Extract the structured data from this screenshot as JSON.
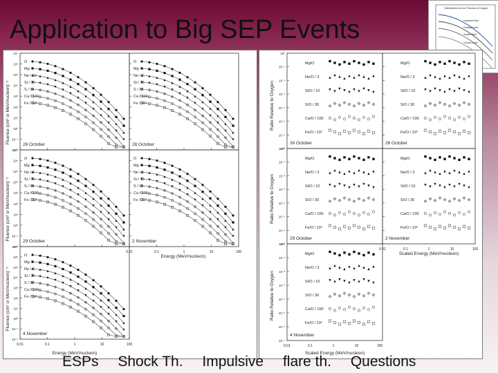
{
  "slide": {
    "title": "Application to Big SEP Events"
  },
  "thumbnail": {
    "title": "Distributions for the Theories of Oxygen",
    "labels": [
      "Impulsive flare",
      "Gradual event",
      "Scaled Wind",
      "Ground Level"
    ]
  },
  "left_figure": {
    "ylabel": "Fluence (cm² sr MeV/nucleon)⁻¹",
    "xlabel": "Energy (MeV/nucleon)",
    "x_ticks": [
      "0.01",
      "0.1",
      "1",
      "10",
      "100"
    ],
    "y_ticks": [
      "10⁷",
      "10⁶",
      "10⁵",
      "10⁴",
      "10³",
      "10²",
      "10¹",
      "10⁰",
      "10⁻¹",
      "10⁻²"
    ],
    "panels": [
      {
        "date": "26 October",
        "species": [
          "O",
          "Mg",
          "Ne / 10",
          "Si / 10",
          "S / 30",
          "Ca / 100",
          "Fe / 10³"
        ]
      },
      {
        "date": "28 October",
        "species": [
          "O",
          "Mg",
          "Ne / 3",
          "Si / 10",
          "S / 30",
          "Ca / 100",
          "Fe / 10³"
        ]
      },
      {
        "date": "29 October",
        "species": [
          "O",
          "Mg",
          "Ne / 3",
          "Si / 10",
          "S / 30",
          "Ca / 100",
          "Fe / 10³"
        ]
      },
      {
        "date": "2 November",
        "species": [
          "O",
          "Mg",
          "Ne / 3",
          "Si / 10",
          "S / 30",
          "Ca / 100",
          "Fe / 10³"
        ]
      },
      {
        "date": "4 November",
        "species": [
          "O",
          "Mg",
          "Ne / 3",
          "Si / 10",
          "S / 30",
          "Ca / 100",
          "Fe / 10³"
        ]
      }
    ]
  },
  "right_figure": {
    "ylabel": "Ratio Relative to Oxygen",
    "xlabel": "Scaled Energy (MeV/nucleon)",
    "x_ticks": [
      "0.01",
      "0.1",
      "1",
      "10",
      "100"
    ],
    "y_ticks": [
      "10⁰",
      "10⁻¹",
      "10⁻²",
      "10⁻³",
      "10⁻⁴",
      "10⁻⁵",
      "10⁻⁶",
      "10⁻⁷"
    ],
    "panels": [
      {
        "date": "26 October",
        "ratios": [
          "Mg/O",
          "Ne/O / 3",
          "Si/O / 10",
          "S/O / 30",
          "Ca/O / 100",
          "Fe/O / 10³"
        ]
      },
      {
        "date": "28 October",
        "ratios": [
          "Mg/O",
          "Ne/O / 3",
          "Si/O / 10",
          "S/O / 30",
          "Ca/O / 100",
          "Fe/O / 10³"
        ]
      },
      {
        "date": "29 October",
        "ratios": [
          "Mg/O",
          "Ne/O / 3",
          "Si/O / 10",
          "S/O / 30",
          "Ca/O / 100",
          "Fe/O / 10³"
        ]
      },
      {
        "date": "2 November",
        "ratios": [
          "Mg/O",
          "Ne/O / 3",
          "Si/O / 10",
          "S/O / 30",
          "Ca/O / 100",
          "Fe/O / 10³"
        ]
      },
      {
        "date": "4 November",
        "ratios": [
          "Mg/O",
          "Ne/O / 3",
          "Si/O / 10",
          "S/O / 30",
          "Ca/O / 100",
          "Fe/O / 10³"
        ]
      }
    ]
  },
  "footer": {
    "links": [
      "ESPs",
      "Shock Th.",
      "Impulsive",
      "flare th.",
      "Questions"
    ]
  }
}
